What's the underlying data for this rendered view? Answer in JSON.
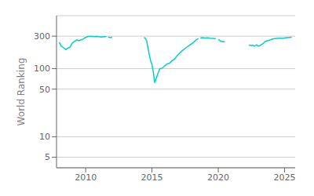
{
  "chart_data": {
    "type": "line",
    "ylabel": "World Ranking",
    "color": "#00d0cc",
    "log": "y",
    "grid": true,
    "xlim": [
      2007.8,
      2025.8
    ],
    "xticks": [
      2010,
      2015,
      2020,
      2025
    ],
    "ylim": [
      3.5,
      600
    ],
    "yticks": [
      5,
      10,
      50,
      100,
      300
    ],
    "x": [
      2008.0,
      2008.15,
      2008.3,
      2008.5,
      2008.65,
      2008.8,
      2009.0,
      2009.2,
      2009.35,
      2009.5,
      2009.65,
      2009.8,
      2010.0,
      2010.15,
      2010.3,
      2010.5,
      2010.65,
      2010.8,
      2011.0,
      2011.2,
      2011.4,
      2011.55,
      null,
      2011.7,
      2011.85,
      2012.0,
      null,
      2014.4,
      2014.5,
      2014.6,
      2014.7,
      2014.8,
      2014.9,
      2015.0,
      2015.05,
      2015.1,
      2015.15,
      2015.2,
      2015.3,
      2015.4,
      2015.5,
      2015.6,
      2015.7,
      2015.85,
      2016.0,
      2016.15,
      2016.3,
      2016.5,
      2016.7,
      2016.9,
      2017.1,
      2017.3,
      2017.6,
      2017.9,
      2018.1,
      2018.3,
      2018.5,
      null,
      2018.65,
      2018.8,
      2019.0,
      2019.2,
      2019.4,
      2019.6,
      2019.8,
      null,
      2020.0,
      2020.2,
      2020.4,
      2020.5,
      null,
      2022.3,
      2022.4,
      2022.5,
      2022.6,
      2022.7,
      2022.8,
      2022.9,
      2023.0,
      2023.1,
      2023.2,
      2023.3,
      2023.4,
      2023.5,
      2023.65,
      2023.8,
      2023.95,
      2024.1,
      2024.25,
      2024.4,
      2024.55,
      2024.7,
      2024.85,
      2025.0,
      2025.15,
      2025.35,
      2025.55
    ],
    "values": [
      245,
      215,
      205,
      190,
      200,
      205,
      240,
      255,
      265,
      258,
      265,
      272,
      288,
      295,
      300,
      298,
      296,
      297,
      296,
      292,
      295,
      295,
      null,
      292,
      285,
      290,
      null,
      288,
      278,
      255,
      200,
      160,
      130,
      115,
      100,
      90,
      75,
      62,
      70,
      80,
      90,
      100,
      100,
      105,
      112,
      118,
      120,
      130,
      138,
      155,
      170,
      185,
      205,
      225,
      240,
      262,
      278,
      null,
      282,
      285,
      282,
      284,
      280,
      278,
      276,
      null,
      268,
      252,
      248,
      248,
      null,
      222,
      220,
      218,
      222,
      215,
      218,
      224,
      215,
      218,
      222,
      228,
      235,
      248,
      255,
      260,
      265,
      272,
      276,
      278,
      280,
      282,
      278,
      282,
      285,
      288,
      290
    ]
  }
}
